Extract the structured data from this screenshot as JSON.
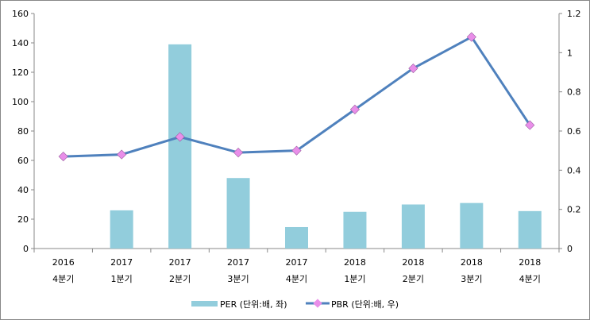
{
  "chart_data": {
    "type": "bar+line",
    "categories": [
      [
        "2016",
        "4분기"
      ],
      [
        "2017",
        "1분기"
      ],
      [
        "2017",
        "2분기"
      ],
      [
        "2017",
        "3분기"
      ],
      [
        "2017",
        "4분기"
      ],
      [
        "2018",
        "1분기"
      ],
      [
        "2018",
        "2분기"
      ],
      [
        "2018",
        "3분기"
      ],
      [
        "2018",
        "4분기"
      ]
    ],
    "series": [
      {
        "name": "PER (단위:배, 좌)",
        "type": "bar",
        "axis": "left",
        "color": "#92CDDC",
        "values": [
          0,
          26,
          139,
          48,
          14.6,
          25,
          30,
          31,
          25.5
        ]
      },
      {
        "name": "PBR (단위:배, 우)",
        "type": "line",
        "axis": "right",
        "color": "#4F81BD",
        "marker_color": "#E98EE9",
        "values": [
          0.47,
          0.48,
          0.57,
          0.49,
          0.5,
          0.71,
          0.92,
          1.08,
          0.63
        ]
      }
    ],
    "left_axis": {
      "min": 0,
      "max": 160,
      "ticks": [
        "0",
        "20",
        "40",
        "60",
        "80",
        "100",
        "120",
        "140",
        "160"
      ]
    },
    "right_axis": {
      "min": 0,
      "max": 1.2,
      "ticks": [
        "0",
        "0.2",
        "0.4",
        "0.6",
        "0.8",
        "1",
        "1.2"
      ]
    },
    "legend_position": "bottom"
  }
}
